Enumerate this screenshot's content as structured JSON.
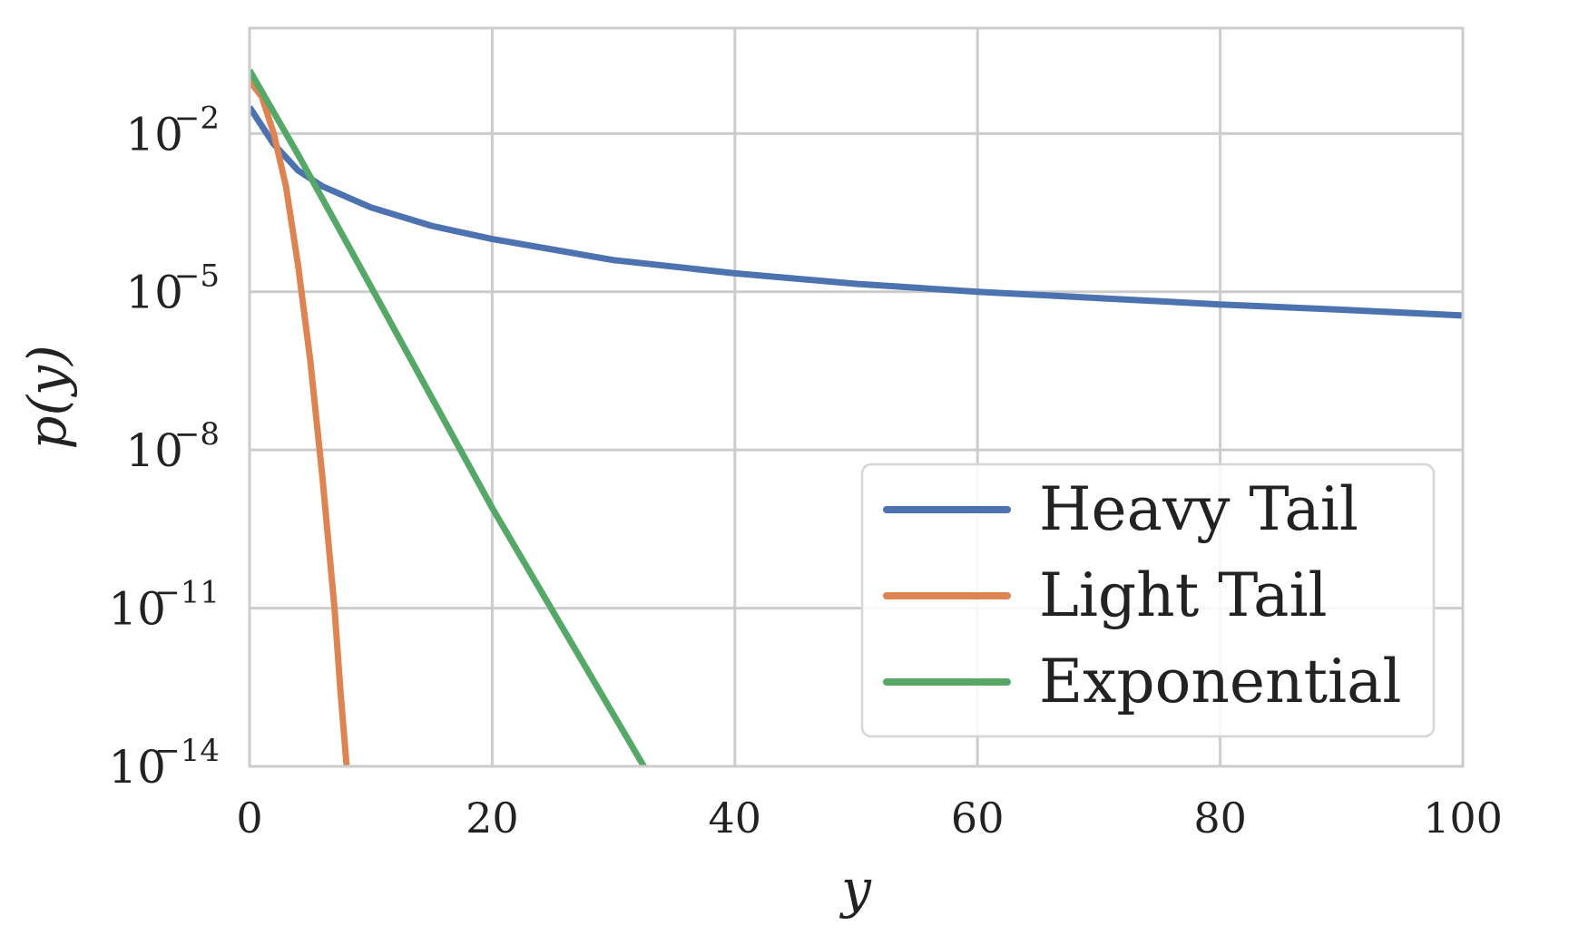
{
  "chart_data": {
    "type": "line",
    "xlabel": "y",
    "ylabel": "p(y)",
    "xlim": [
      0,
      100
    ],
    "ylim_exponent": [
      -14,
      0
    ],
    "yscale": "log",
    "grid": true,
    "legend_position": "lower-right",
    "x_ticks": [
      "0",
      "20",
      "40",
      "60",
      "80",
      "100"
    ],
    "y_ticks": [
      {
        "base": "10",
        "exp": "−2",
        "exp_value": -2
      },
      {
        "base": "10",
        "exp": "−5",
        "exp_value": -5
      },
      {
        "base": "10",
        "exp": "−8",
        "exp_value": -8
      },
      {
        "base": "10",
        "exp": "−11",
        "exp_value": -11
      },
      {
        "base": "10",
        "exp": "−14",
        "exp_value": -14
      }
    ],
    "series": [
      {
        "name": "Heavy Tail",
        "color": "#4c72b0",
        "x": [
          0,
          2,
          4,
          6,
          10,
          15,
          20,
          30,
          40,
          50,
          60,
          70,
          80,
          90,
          100
        ],
        "log10_y": [
          -1.5,
          -2.2,
          -2.7,
          -3.0,
          -3.4,
          -3.75,
          -4.0,
          -4.4,
          -4.65,
          -4.85,
          -5.0,
          -5.12,
          -5.24,
          -5.34,
          -5.45
        ]
      },
      {
        "name": "Light Tail",
        "color": "#dd8452",
        "x": [
          0,
          1,
          2,
          3,
          4,
          5,
          6,
          7,
          7.5,
          8
        ],
        "log10_y": [
          -1.0,
          -1.3,
          -2.0,
          -3.0,
          -4.5,
          -6.3,
          -8.5,
          -11.0,
          -12.6,
          -14.0
        ]
      },
      {
        "name": "Exponential",
        "color": "#55a868",
        "x": [
          0,
          4,
          10,
          20,
          32.5
        ],
        "log10_y": [
          -0.8,
          -2.4,
          -4.9,
          -9.1,
          -14.0
        ]
      }
    ]
  }
}
